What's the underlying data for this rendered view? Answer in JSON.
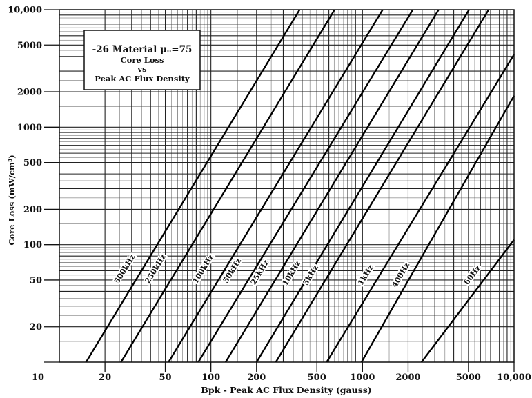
{
  "chart_data": {
    "type": "line",
    "title": "-26 Material μₒ=75",
    "subtitle_lines": [
      "Core Loss",
      "vs",
      "Peak AC Flux Density"
    ],
    "xlabel": "Bpk - Peak AC Flux Density (gauss)",
    "ylabel": "Core Loss (mW/cm³)",
    "x_scale": "log",
    "y_scale": "log",
    "xlim": [
      10,
      10000
    ],
    "ylim": [
      10,
      10000
    ],
    "x_ticks": [
      10,
      20,
      50,
      100,
      200,
      500,
      1000,
      2000,
      5000,
      10000
    ],
    "x_tick_labels": [
      "10",
      "20",
      "50",
      "100",
      "200",
      "500",
      "1000",
      "2000",
      "5000",
      "10,000"
    ],
    "y_ticks": [
      20,
      50,
      100,
      200,
      500,
      1000,
      2000,
      5000,
      10000
    ],
    "y_tick_labels": [
      "20",
      "50",
      "100",
      "200",
      "500",
      "1000",
      "2000",
      "5000",
      "10,000"
    ],
    "grid": true,
    "legend_position": "top-left",
    "series": [
      {
        "name": "500kHz",
        "x": [
          15,
          385
        ],
        "y": [
          10,
          10000
        ]
      },
      {
        "name": "250kHz",
        "x": [
          25.5,
          655
        ],
        "y": [
          10,
          10000
        ]
      },
      {
        "name": "100kHz",
        "x": [
          52.5,
          1360
        ],
        "y": [
          10,
          10000
        ]
      },
      {
        "name": "50kHz",
        "x": [
          82.5,
          2150
        ],
        "y": [
          10,
          10000
        ]
      },
      {
        "name": "25kHz",
        "x": [
          125,
          3180
        ],
        "y": [
          10,
          10000
        ]
      },
      {
        "name": "10kHz",
        "x": [
          200,
          5050
        ],
        "y": [
          10,
          10000
        ]
      },
      {
        "name": "5kHz",
        "x": [
          268,
          6800
        ],
        "y": [
          10,
          10000
        ]
      },
      {
        "name": "1kHz",
        "x": [
          580,
          10000
        ],
        "y": [
          10,
          4150
        ]
      },
      {
        "name": "400Hz",
        "x": [
          985,
          10000
        ],
        "y": [
          10,
          1850
        ]
      },
      {
        "name": "60Hz",
        "x": [
          2450,
          10000
        ],
        "y": [
          10,
          110
        ]
      }
    ],
    "series_label_points": [
      {
        "x": 27,
        "y": 62
      },
      {
        "x": 43,
        "y": 62
      },
      {
        "x": 89,
        "y": 62
      },
      {
        "x": 138,
        "y": 60
      },
      {
        "x": 210,
        "y": 58
      },
      {
        "x": 340,
        "y": 57
      },
      {
        "x": 455,
        "y": 55
      },
      {
        "x": 1050,
        "y": 55
      },
      {
        "x": 1790,
        "y": 55
      },
      {
        "x": 5300,
        "y": 55
      }
    ]
  }
}
